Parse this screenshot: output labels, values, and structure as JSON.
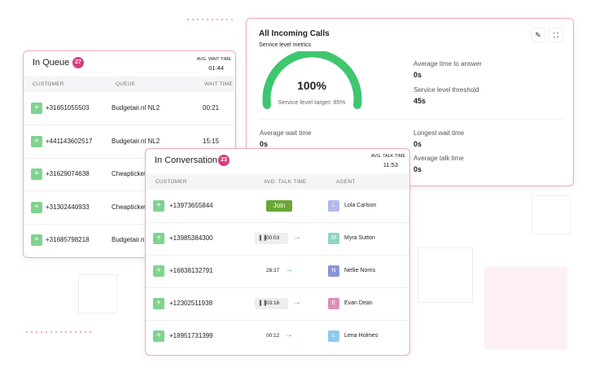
{
  "incoming": {
    "title": "All Incoming Calls",
    "subtitle": "Service level metrics",
    "gauge": {
      "value": "100%",
      "label": "Service level target: 85%"
    },
    "metrics": [
      {
        "label": "Average time to answer",
        "value": "0s"
      },
      {
        "label": "Service level threshold",
        "value": "45s"
      },
      {
        "label": "Average wait time",
        "value": "0s"
      },
      {
        "label": "Longest wait time",
        "value": "0s"
      },
      {
        "label": "Average talk time",
        "value": "0s"
      }
    ]
  },
  "queue": {
    "title": "In Queue",
    "count": "27",
    "stat_label": "AVG. WAIT TIME",
    "stat_value": "01:44",
    "columns": [
      "CUSTOMER",
      "QUEUE",
      "WAIT TIME"
    ],
    "rows": [
      {
        "phone": "+31651055503",
        "queue": "Budgetair.nl NL2",
        "wait": "00:21"
      },
      {
        "phone": "+441143602517",
        "queue": "Budgetair.nl NL2",
        "wait": "15:15"
      },
      {
        "phone": "+31629074638",
        "queue": "Cheapticket"
      },
      {
        "phone": "+31302440933",
        "queue": "Cheapticket"
      },
      {
        "phone": "+31685798218",
        "queue": "Budgetair.nl"
      }
    ]
  },
  "conversation": {
    "title": "In Conversation",
    "count": "23",
    "stat_label": "AVG. TALK TIME",
    "stat_value": "11:53",
    "columns": [
      "CUSTOMER",
      "AVG. TALK TIME",
      "AGENT"
    ],
    "rows": [
      {
        "phone": "+13973655844",
        "join": "Join",
        "initial": "L",
        "agent": "Lola Carlson",
        "color": "#b4b8f0"
      },
      {
        "phone": "+13985384300",
        "talk": "00:03",
        "initial": "M",
        "agent": "Myra Sutton",
        "color": "#8fd6c4"
      },
      {
        "phone": "+16838132791",
        "talk": "28:37",
        "initial": "N",
        "agent": "Nellie Norris",
        "color": "#8c93d6"
      },
      {
        "phone": "+12302511938",
        "talk": "03:16",
        "initial": "E",
        "agent": "Evan Dean",
        "color": "#dd8fb5"
      },
      {
        "phone": "+18951731399",
        "talk": "00:12",
        "initial": "L",
        "agent": "Lena Holmes",
        "color": "#8ccbef"
      }
    ]
  }
}
